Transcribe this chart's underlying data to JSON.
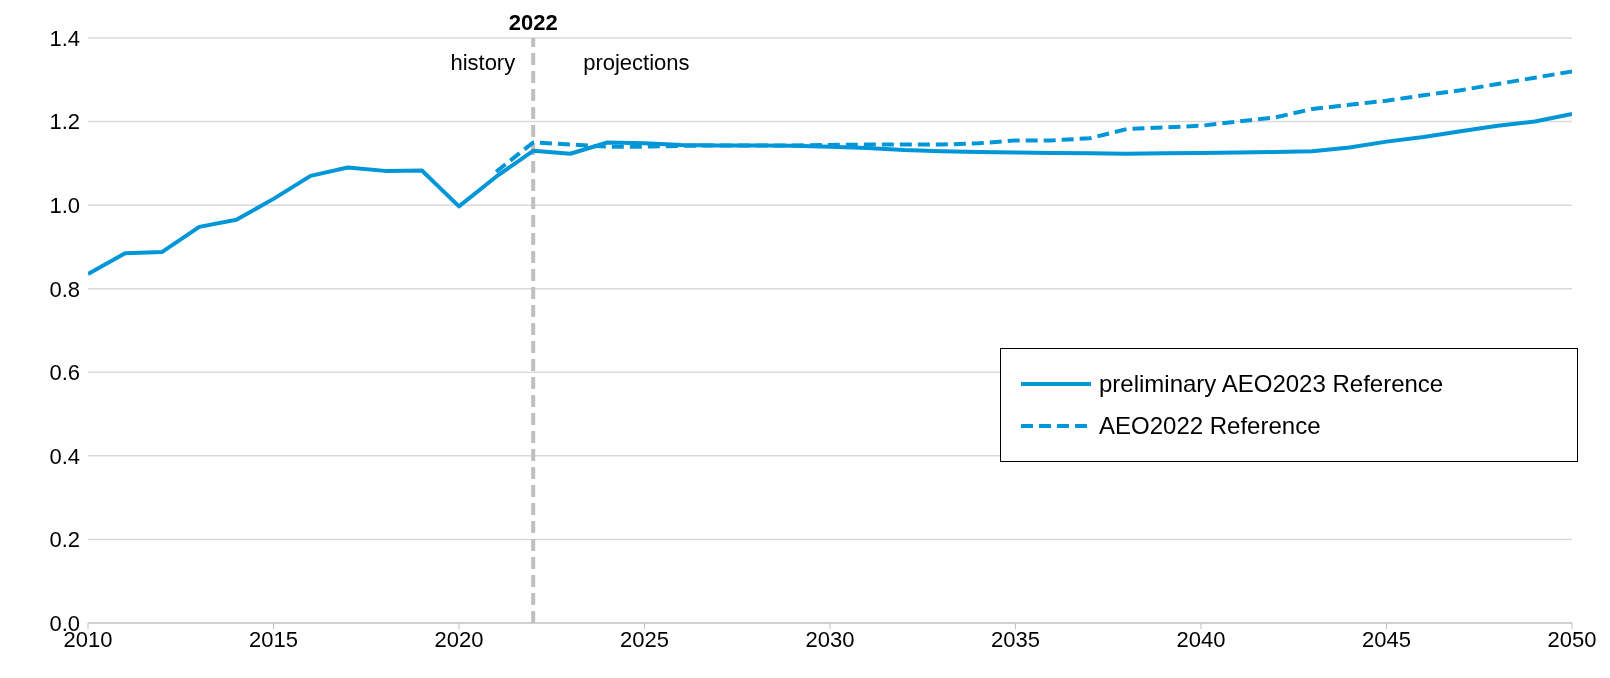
{
  "chart_data": {
    "type": "line",
    "xlim": [
      2010,
      2050
    ],
    "xticks": [
      2010,
      2015,
      2020,
      2025,
      2030,
      2035,
      2040,
      2045,
      2050
    ],
    "ylim": [
      0,
      1.4
    ],
    "yticks": [
      {
        "value": 0,
        "label": "0.0"
      },
      0.2,
      0.4,
      0.6,
      0.8,
      {
        "value": 1,
        "label": "1.0"
      },
      1.2,
      1.4
    ],
    "grid": "y",
    "legend": "right",
    "marker": "none",
    "series": [
      {
        "name": "preliminary AEO2023 Reference",
        "color": "#0096d7",
        "line_style": "solid",
        "x": [
          2010,
          2011,
          2012,
          2013,
          2014,
          2015,
          2016,
          2017,
          2018,
          2019,
          2020,
          2021,
          2022,
          2023,
          2024,
          2025,
          2026,
          2027,
          2028,
          2029,
          2030,
          2031,
          2032,
          2033,
          2034,
          2035,
          2036,
          2037,
          2038,
          2039,
          2040,
          2041,
          2042,
          2043,
          2044,
          2045,
          2046,
          2047,
          2048,
          2049,
          2050
        ],
        "values": [
          0.835,
          0.885,
          0.888,
          0.948,
          0.965,
          1.015,
          1.07,
          1.09,
          1.082,
          1.083,
          0.997,
          1.068,
          1.13,
          1.123,
          1.15,
          1.148,
          1.144,
          1.143,
          1.143,
          1.142,
          1.14,
          1.137,
          1.132,
          1.129,
          1.127,
          1.126,
          1.125,
          1.124,
          1.123,
          1.124,
          1.125,
          1.126,
          1.127,
          1.129,
          1.138,
          1.152,
          1.163,
          1.177,
          1.19,
          1.2,
          1.218
        ]
      },
      {
        "name": "AEO2022 Reference",
        "color": "#0096d7",
        "line_style": "dashed",
        "x": [
          2021,
          2022,
          2023,
          2024,
          2025,
          2026,
          2027,
          2028,
          2029,
          2030,
          2031,
          2032,
          2033,
          2034,
          2035,
          2036,
          2037,
          2038,
          2039,
          2040,
          2041,
          2042,
          2043,
          2044,
          2045,
          2046,
          2047,
          2048,
          2049,
          2050
        ],
        "values": [
          1.08,
          1.15,
          1.145,
          1.14,
          1.14,
          1.142,
          1.143,
          1.143,
          1.143,
          1.144,
          1.145,
          1.145,
          1.145,
          1.148,
          1.155,
          1.155,
          1.16,
          1.182,
          1.186,
          1.19,
          1.2,
          1.21,
          1.23,
          1.24,
          1.25,
          1.263,
          1.275,
          1.29,
          1.305,
          1.32
        ]
      }
    ],
    "ref_lines": [
      {
        "axis": "x",
        "value": 2022,
        "label": "2022",
        "color": "#bfbfbf",
        "line_style": "dashed"
      }
    ],
    "annotations": [
      "history",
      "projections"
    ]
  }
}
